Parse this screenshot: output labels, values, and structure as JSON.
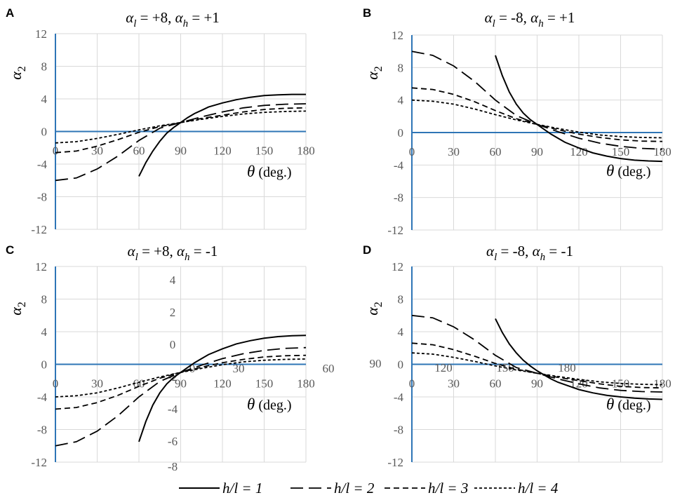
{
  "chart_data": [
    {
      "type": "line",
      "panel": "A",
      "title": {
        "a_sym": "α",
        "a_sub": "l",
        "a_val": " = +8, ",
        "b_sym": "α",
        "b_sub": "h",
        "b_val": " = +1"
      },
      "ylabel": {
        "sym": "α",
        "sub": "2"
      },
      "xlabel": {
        "sym": "θ",
        "rest": " (deg.)"
      },
      "xlim": [
        0,
        180
      ],
      "ylim": [
        -12,
        12
      ],
      "xticks": [
        "0",
        "30",
        "60",
        "90",
        "120",
        "150",
        "180"
      ],
      "yticks": [
        "12",
        "8",
        "4",
        "0",
        "-4",
        "-8",
        "-12"
      ],
      "series": [
        {
          "name": "h/l = 1",
          "x": [
            60,
            65,
            70,
            75,
            80,
            85,
            90,
            95,
            100,
            105,
            110,
            120,
            130,
            140,
            150,
            160,
            170,
            180
          ],
          "y": [
            -5.5,
            -3.8,
            -2.4,
            -1.2,
            -0.2,
            0.5,
            1.1,
            1.7,
            2.2,
            2.6,
            3.0,
            3.5,
            3.9,
            4.2,
            4.4,
            4.5,
            4.55,
            4.55
          ]
        },
        {
          "name": "h/l = 2",
          "x": [
            0,
            15,
            30,
            45,
            60,
            75,
            90,
            105,
            120,
            135,
            150,
            165,
            180
          ],
          "y": [
            -6.0,
            -5.7,
            -4.6,
            -3.0,
            -1.1,
            0.4,
            1.1,
            1.8,
            2.4,
            2.9,
            3.2,
            3.35,
            3.4
          ]
        },
        {
          "name": "h/l = 3",
          "x": [
            0,
            15,
            30,
            45,
            60,
            75,
            90,
            105,
            120,
            135,
            150,
            165,
            180
          ],
          "y": [
            -2.6,
            -2.4,
            -1.8,
            -1.0,
            -0.1,
            0.6,
            1.1,
            1.6,
            2.0,
            2.4,
            2.7,
            2.85,
            2.9
          ]
        },
        {
          "name": "h/l = 4",
          "x": [
            0,
            15,
            30,
            45,
            60,
            75,
            90,
            105,
            120,
            135,
            150,
            165,
            180
          ],
          "y": [
            -1.4,
            -1.25,
            -0.85,
            -0.35,
            0.2,
            0.7,
            1.1,
            1.5,
            1.85,
            2.15,
            2.35,
            2.45,
            2.5
          ]
        }
      ]
    },
    {
      "type": "line",
      "panel": "B",
      "title": {
        "a_sym": "α",
        "a_sub": "l",
        "a_val": " = -8, ",
        "b_sym": "α",
        "b_sub": "h",
        "b_val": " = +1"
      },
      "ylabel": {
        "sym": "α",
        "sub": "2"
      },
      "xlabel": {
        "sym": "θ",
        "rest": " (deg.)"
      },
      "xlim": [
        0,
        180
      ],
      "ylim": [
        -12,
        12
      ],
      "xticks": [
        "0",
        "30",
        "60",
        "90",
        "120",
        "150",
        "180"
      ],
      "yticks": [
        "12",
        "8",
        "4",
        "0",
        "-4",
        "-8",
        "-12"
      ],
      "series": [
        {
          "name": "h/l = 1",
          "x": [
            60,
            65,
            70,
            75,
            80,
            85,
            90,
            95,
            100,
            105,
            110,
            120,
            130,
            140,
            150,
            160,
            170,
            180
          ],
          "y": [
            9.5,
            7.0,
            5.0,
            3.5,
            2.4,
            1.6,
            1.0,
            0.4,
            -0.2,
            -0.7,
            -1.2,
            -1.9,
            -2.5,
            -2.9,
            -3.2,
            -3.4,
            -3.5,
            -3.55
          ]
        },
        {
          "name": "h/l = 2",
          "x": [
            0,
            15,
            30,
            45,
            60,
            75,
            90,
            105,
            120,
            135,
            150,
            165,
            180
          ],
          "y": [
            10.0,
            9.5,
            8.2,
            6.3,
            4.0,
            2.1,
            1.0,
            0.1,
            -0.7,
            -1.3,
            -1.7,
            -1.95,
            -2.05
          ]
        },
        {
          "name": "h/l = 3",
          "x": [
            0,
            15,
            30,
            45,
            60,
            75,
            90,
            105,
            120,
            135,
            150,
            165,
            180
          ],
          "y": [
            5.5,
            5.3,
            4.7,
            3.8,
            2.7,
            1.7,
            1.0,
            0.35,
            -0.2,
            -0.6,
            -0.9,
            -1.05,
            -1.1
          ]
        },
        {
          "name": "h/l = 4",
          "x": [
            0,
            15,
            30,
            45,
            60,
            75,
            90,
            105,
            120,
            135,
            150,
            165,
            180
          ],
          "y": [
            4.0,
            3.85,
            3.5,
            2.9,
            2.2,
            1.55,
            1.0,
            0.5,
            0.05,
            -0.3,
            -0.5,
            -0.6,
            -0.65
          ]
        }
      ]
    },
    {
      "type": "line",
      "panel": "C",
      "title": {
        "a_sym": "α",
        "a_sub": "l",
        "a_val": " = +8, ",
        "b_sym": "α",
        "b_sub": "h",
        "b_val": " = -1"
      },
      "ylabel": {
        "sym": "α",
        "sub": "2"
      },
      "xlabel": {
        "sym": "θ",
        "rest": " (deg.)"
      },
      "xlim": [
        0,
        180
      ],
      "ylim": [
        -12,
        12
      ],
      "xticks": [
        "0",
        "30",
        "60",
        "90",
        "120",
        "150",
        "180"
      ],
      "yticks": [
        "12",
        "8",
        "4",
        "0",
        "-4",
        "-8",
        "-12"
      ],
      "overlay_ticks": [
        "4",
        "2",
        "0",
        "-2",
        "-4",
        "-6",
        "-8",
        "0",
        "30",
        "60"
      ],
      "series": [
        {
          "name": "h/l = 1",
          "x": [
            60,
            65,
            70,
            75,
            80,
            85,
            90,
            95,
            100,
            105,
            110,
            120,
            130,
            140,
            150,
            160,
            170,
            180
          ],
          "y": [
            -9.5,
            -7.0,
            -5.0,
            -3.5,
            -2.4,
            -1.6,
            -1.0,
            -0.4,
            0.2,
            0.7,
            1.2,
            1.9,
            2.5,
            2.9,
            3.2,
            3.4,
            3.5,
            3.55
          ]
        },
        {
          "name": "h/l = 2",
          "x": [
            0,
            15,
            30,
            45,
            60,
            75,
            90,
            105,
            120,
            135,
            150,
            165,
            180
          ],
          "y": [
            -10.0,
            -9.5,
            -8.2,
            -6.3,
            -4.0,
            -2.1,
            -1.0,
            -0.1,
            0.7,
            1.3,
            1.7,
            1.95,
            2.05
          ]
        },
        {
          "name": "h/l = 3",
          "x": [
            0,
            15,
            30,
            45,
            60,
            75,
            90,
            105,
            120,
            135,
            150,
            165,
            180
          ],
          "y": [
            -5.5,
            -5.3,
            -4.7,
            -3.8,
            -2.7,
            -1.7,
            -1.0,
            -0.35,
            0.2,
            0.6,
            0.9,
            1.05,
            1.1
          ]
        },
        {
          "name": "h/l = 4",
          "x": [
            0,
            15,
            30,
            45,
            60,
            75,
            90,
            105,
            120,
            135,
            150,
            165,
            180
          ],
          "y": [
            -4.0,
            -3.85,
            -3.5,
            -2.9,
            -2.2,
            -1.55,
            -1.0,
            -0.5,
            -0.05,
            0.3,
            0.5,
            0.6,
            0.65
          ]
        }
      ]
    },
    {
      "type": "line",
      "panel": "D",
      "title": {
        "a_sym": "α",
        "a_sub": "l",
        "a_val": " = -8, ",
        "b_sym": "α",
        "b_sub": "h",
        "b_val": " = -1"
      },
      "ylabel": {
        "sym": "α",
        "sub": "2"
      },
      "xlabel": {
        "sym": "θ",
        "rest": " (deg.)"
      },
      "xlim": [
        0,
        180
      ],
      "ylim": [
        -12,
        12
      ],
      "xticks": [
        "0",
        "30",
        "60",
        "90",
        "120",
        "150",
        "180"
      ],
      "yticks": [
        "12",
        "8",
        "4",
        "0",
        "-4",
        "-8",
        "-12"
      ],
      "overlay_ticks": [
        "90",
        "120",
        "150",
        "180"
      ],
      "series": [
        {
          "name": "h/l = 1",
          "x": [
            60,
            65,
            70,
            75,
            80,
            85,
            90,
            95,
            100,
            105,
            110,
            120,
            130,
            140,
            150,
            160,
            170,
            180
          ],
          "y": [
            5.6,
            3.9,
            2.5,
            1.4,
            0.5,
            -0.2,
            -0.8,
            -1.3,
            -1.8,
            -2.2,
            -2.5,
            -3.1,
            -3.5,
            -3.8,
            -4.0,
            -4.15,
            -4.25,
            -4.3
          ]
        },
        {
          "name": "h/l = 2",
          "x": [
            0,
            15,
            30,
            45,
            60,
            75,
            90,
            105,
            120,
            135,
            150,
            165,
            180
          ],
          "y": [
            6.0,
            5.7,
            4.6,
            3.0,
            1.1,
            -0.4,
            -1.1,
            -1.8,
            -2.4,
            -2.9,
            -3.2,
            -3.35,
            -3.4
          ]
        },
        {
          "name": "h/l = 3",
          "x": [
            0,
            15,
            30,
            45,
            60,
            75,
            90,
            105,
            120,
            135,
            150,
            165,
            180
          ],
          "y": [
            2.6,
            2.4,
            1.8,
            1.0,
            0.1,
            -0.6,
            -1.1,
            -1.6,
            -2.0,
            -2.4,
            -2.7,
            -2.85,
            -2.9
          ]
        },
        {
          "name": "h/l = 4",
          "x": [
            0,
            15,
            30,
            45,
            60,
            75,
            90,
            105,
            120,
            135,
            150,
            165,
            180
          ],
          "y": [
            1.4,
            1.25,
            0.85,
            0.35,
            -0.2,
            -0.7,
            -1.1,
            -1.5,
            -1.85,
            -2.15,
            -2.35,
            -2.45,
            -2.5
          ]
        }
      ]
    }
  ],
  "legend": [
    {
      "label": "h/l = 1",
      "style": "solid"
    },
    {
      "label": "h/l = 2",
      "style": "long-dash"
    },
    {
      "label": "h/l = 3",
      "style": "dash"
    },
    {
      "label": "h/l = 4",
      "style": "short-dash"
    }
  ],
  "colors": {
    "axis": "#2e75b6",
    "grid": "#d9d9d9",
    "line": "#000000",
    "tick": "#595959"
  }
}
